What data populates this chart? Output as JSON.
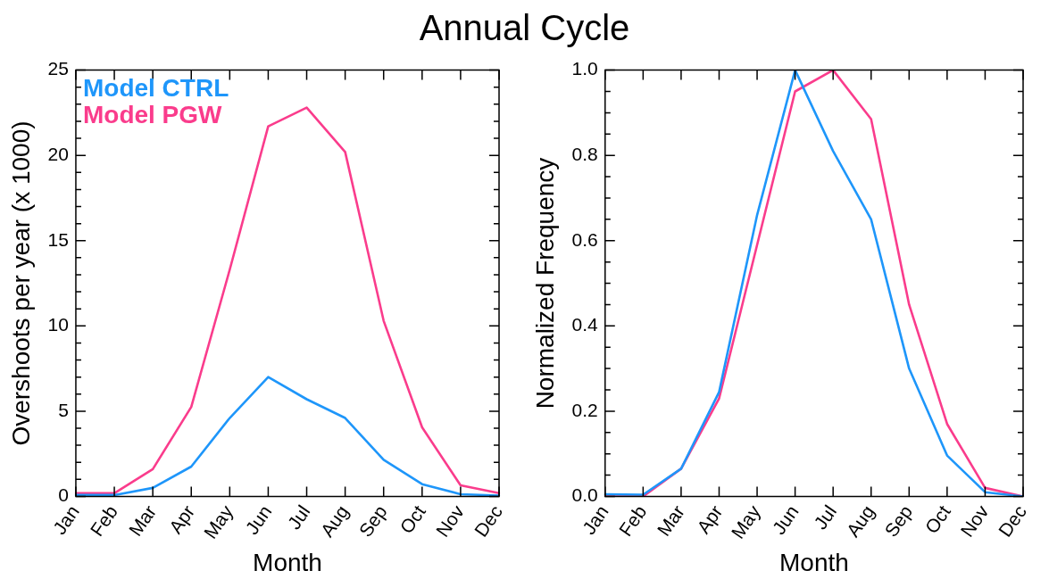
{
  "chart_data": [
    {
      "type": "line",
      "title": "Annual Cycle",
      "xlabel": "Month",
      "ylabel": "Overshoots per year (x 1000)",
      "categories": [
        "Jan",
        "Feb",
        "Mar",
        "Apr",
        "May",
        "Jun",
        "Jul",
        "Aug",
        "Sep",
        "Oct",
        "Nov",
        "Dec"
      ],
      "series": [
        {
          "name": "Model CTRL",
          "color": "#1e96fa",
          "values": [
            0.08,
            0.08,
            0.5,
            1.75,
            4.6,
            7.0,
            5.7,
            4.6,
            2.15,
            0.72,
            0.13,
            0.05
          ]
        },
        {
          "name": "Model PGW",
          "color": "#fa3c8c",
          "values": [
            0.19,
            0.19,
            1.6,
            5.25,
            13.3,
            21.7,
            22.8,
            20.2,
            10.3,
            4.05,
            0.65,
            0.19
          ]
        }
      ],
      "ylim": [
        0,
        25
      ],
      "yticks": [
        0,
        {
          "value": 1,
          "label": null
        },
        {
          "value": 2,
          "label": null
        },
        {
          "value": 3,
          "label": null
        },
        {
          "value": 4,
          "label": null
        },
        5,
        {
          "value": 6,
          "label": null
        },
        {
          "value": 7,
          "label": null
        },
        {
          "value": 8,
          "label": null
        },
        {
          "value": 9,
          "label": null
        },
        10,
        {
          "value": 11,
          "label": null
        },
        {
          "value": 12,
          "label": null
        },
        {
          "value": 13,
          "label": null
        },
        {
          "value": 14,
          "label": null
        },
        15,
        {
          "value": 16,
          "label": null
        },
        {
          "value": 17,
          "label": null
        },
        {
          "value": 18,
          "label": null
        },
        {
          "value": 19,
          "label": null
        },
        20,
        {
          "value": 21,
          "label": null
        },
        {
          "value": 22,
          "label": null
        },
        {
          "value": 23,
          "label": null
        },
        {
          "value": 24,
          "label": null
        },
        25
      ],
      "legend": "top left",
      "marker": "none",
      "line_style": "solid"
    },
    {
      "type": "line",
      "xlabel": "Month",
      "ylabel": "Normalized Frequency",
      "categories": [
        "Jan",
        "Feb",
        "Mar",
        "Apr",
        "May",
        "Jun",
        "Jul",
        "Aug",
        "Sep",
        "Oct",
        "Nov",
        "Dec"
      ],
      "series": [
        {
          "color": "#1e96fa",
          "values": [
            0.005,
            0.004,
            0.065,
            0.245,
            0.66,
            1.0,
            0.81,
            0.65,
            0.3,
            0.096,
            0.01,
            0.0
          ]
        },
        {
          "color": "#fa3c8c",
          "values": [
            0.0,
            0.0,
            0.065,
            0.23,
            0.59,
            0.95,
            1.0,
            0.885,
            0.45,
            0.17,
            0.02,
            0.0
          ]
        }
      ],
      "ylim": [
        0,
        1
      ],
      "yticks": [
        {
          "value": 0,
          "label": "0.0"
        },
        {
          "value": 0.05,
          "label": null
        },
        {
          "value": 0.1,
          "label": null
        },
        {
          "value": 0.15,
          "label": null
        },
        {
          "value": 0.2,
          "label": "0.2"
        },
        {
          "value": 0.25,
          "label": null
        },
        {
          "value": 0.3,
          "label": null
        },
        {
          "value": 0.35,
          "label": null
        },
        {
          "value": 0.4,
          "label": "0.4"
        },
        {
          "value": 0.45,
          "label": null
        },
        {
          "value": 0.5,
          "label": null
        },
        {
          "value": 0.55,
          "label": null
        },
        {
          "value": 0.6,
          "label": "0.6"
        },
        {
          "value": 0.65,
          "label": null
        },
        {
          "value": 0.7,
          "label": null
        },
        {
          "value": 0.75,
          "label": null
        },
        {
          "value": 0.8,
          "label": "0.8"
        },
        {
          "value": 0.85,
          "label": null
        },
        {
          "value": 0.9,
          "label": null
        },
        {
          "value": 0.95,
          "label": null
        },
        {
          "value": 1,
          "label": "1.0"
        }
      ],
      "legend": false,
      "marker": "none",
      "line_style": "solid"
    }
  ]
}
